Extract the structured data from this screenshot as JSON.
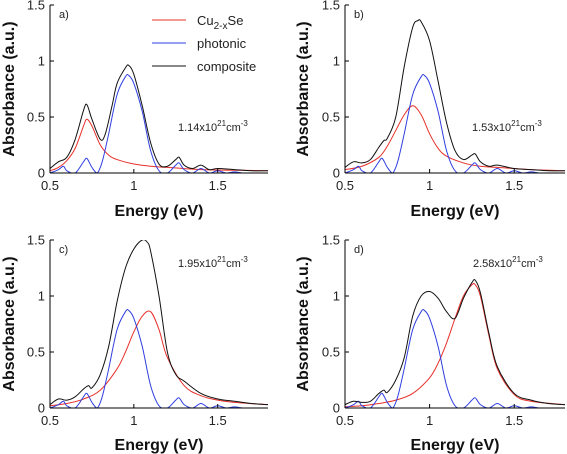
{
  "chart_data": [
    {
      "type": "line",
      "panel_label": "a)",
      "annotation": {
        "base": "1.14x10",
        "exp": "21",
        "unit": "cm",
        "unit_exp": "-3"
      },
      "xlabel": "Energy (eV)",
      "ylabel": "Absorbance (a.u.)",
      "xlim": [
        0.5,
        1.8
      ],
      "ylim": [
        0,
        1.5
      ],
      "xticks": [
        0.5,
        1,
        1.5
      ],
      "xtick_labels": [
        "0.5",
        "1",
        "1.5"
      ],
      "yticks": [
        0,
        0.5,
        1,
        1.5
      ],
      "ytick_labels": [
        "0",
        "0.5",
        "1",
        "1.5"
      ],
      "legend": {
        "placement": "top-right",
        "entries": [
          {
            "series": "cu",
            "text": "Cu",
            "sub": "2-x",
            "suffix": "Se"
          },
          {
            "series": "photonic",
            "text": "photonic"
          },
          {
            "series": "composite",
            "text": "composite"
          }
        ]
      },
      "series": [
        {
          "name": "Cu2-xSe",
          "key": "cu",
          "color": "#e8302a",
          "x": [
            0.5,
            0.55,
            0.6,
            0.65,
            0.7,
            0.72,
            0.75,
            0.8,
            0.85,
            0.9,
            1.0,
            1.1,
            1.2,
            1.4,
            1.6,
            1.8
          ],
          "y": [
            0.02,
            0.05,
            0.11,
            0.22,
            0.42,
            0.48,
            0.42,
            0.25,
            0.16,
            0.12,
            0.08,
            0.06,
            0.05,
            0.03,
            0.025,
            0.02
          ]
        },
        {
          "name": "photonic",
          "key": "photonic",
          "color": "#2f3fe0",
          "x": [
            0.5,
            0.55,
            0.58,
            0.6,
            0.65,
            0.7,
            0.72,
            0.75,
            0.78,
            0.8,
            0.82,
            0.85,
            0.9,
            0.95,
            0.97,
            1.0,
            1.05,
            1.1,
            1.15,
            1.2,
            1.25,
            1.27,
            1.3,
            1.35,
            1.4,
            1.45,
            1.5,
            1.55,
            1.6,
            1.65,
            1.7,
            1.8
          ],
          "y": [
            0.0,
            0.03,
            0.06,
            0.02,
            0.0,
            0.1,
            0.13,
            0.05,
            0.0,
            0.05,
            0.15,
            0.35,
            0.7,
            0.86,
            0.87,
            0.8,
            0.55,
            0.2,
            0.02,
            0.0,
            0.07,
            0.09,
            0.03,
            0.0,
            0.04,
            0.0,
            0.02,
            0.0,
            0.01,
            0.0,
            0.0,
            0.0
          ]
        },
        {
          "name": "composite",
          "key": "composite",
          "color": "#111111",
          "x": [
            0.5,
            0.55,
            0.6,
            0.65,
            0.7,
            0.72,
            0.75,
            0.8,
            0.83,
            0.87,
            0.9,
            0.95,
            0.97,
            1.0,
            1.05,
            1.1,
            1.15,
            1.2,
            1.25,
            1.27,
            1.3,
            1.35,
            1.4,
            1.45,
            1.5,
            1.6,
            1.7,
            1.8
          ],
          "y": [
            0.04,
            0.1,
            0.14,
            0.3,
            0.56,
            0.61,
            0.48,
            0.3,
            0.35,
            0.6,
            0.8,
            0.94,
            0.96,
            0.88,
            0.6,
            0.27,
            0.08,
            0.06,
            0.12,
            0.14,
            0.07,
            0.04,
            0.07,
            0.03,
            0.04,
            0.03,
            0.02,
            0.02
          ]
        }
      ]
    },
    {
      "type": "line",
      "panel_label": "b)",
      "annotation": {
        "base": "1.53x10",
        "exp": "21",
        "unit": "cm",
        "unit_exp": "-3"
      },
      "xlabel": "Energy (eV)",
      "ylabel": "Absorbance (a.u.)",
      "xlim": [
        0.5,
        1.8
      ],
      "ylim": [
        0,
        1.5
      ],
      "xticks": [
        0.5,
        1,
        1.5
      ],
      "xtick_labels": [
        "0.5",
        "1",
        "1.5"
      ],
      "yticks": [
        0,
        0.5,
        1,
        1.5
      ],
      "ytick_labels": [
        "0",
        "0.5",
        "1",
        "1.5"
      ],
      "series": [
        {
          "name": "Cu2-xSe",
          "key": "cu",
          "color": "#e8302a",
          "x": [
            0.5,
            0.6,
            0.7,
            0.75,
            0.8,
            0.85,
            0.9,
            0.95,
            1.0,
            1.05,
            1.1,
            1.2,
            1.3,
            1.4,
            1.6,
            1.8
          ],
          "y": [
            0.03,
            0.06,
            0.14,
            0.24,
            0.38,
            0.52,
            0.6,
            0.52,
            0.35,
            0.22,
            0.15,
            0.09,
            0.06,
            0.05,
            0.03,
            0.02
          ]
        },
        {
          "name": "photonic",
          "key": "photonic",
          "color": "#2f3fe0",
          "x": [
            0.5,
            0.55,
            0.58,
            0.6,
            0.65,
            0.7,
            0.72,
            0.75,
            0.78,
            0.8,
            0.82,
            0.85,
            0.9,
            0.95,
            0.97,
            1.0,
            1.05,
            1.1,
            1.15,
            1.2,
            1.25,
            1.27,
            1.3,
            1.35,
            1.4,
            1.45,
            1.5,
            1.55,
            1.6,
            1.65,
            1.7,
            1.8
          ],
          "y": [
            0.0,
            0.03,
            0.06,
            0.02,
            0.0,
            0.1,
            0.13,
            0.05,
            0.0,
            0.05,
            0.15,
            0.35,
            0.7,
            0.86,
            0.87,
            0.8,
            0.55,
            0.2,
            0.02,
            0.0,
            0.07,
            0.09,
            0.03,
            0.0,
            0.04,
            0.0,
            0.02,
            0.0,
            0.01,
            0.0,
            0.0,
            0.0
          ]
        },
        {
          "name": "composite",
          "key": "composite",
          "color": "#111111",
          "x": [
            0.5,
            0.55,
            0.6,
            0.65,
            0.7,
            0.73,
            0.75,
            0.8,
            0.85,
            0.9,
            0.93,
            0.95,
            1.0,
            1.05,
            1.1,
            1.15,
            1.2,
            1.25,
            1.27,
            1.3,
            1.35,
            1.4,
            1.5,
            1.6,
            1.7,
            1.8
          ],
          "y": [
            0.05,
            0.1,
            0.09,
            0.12,
            0.23,
            0.29,
            0.31,
            0.5,
            0.95,
            1.3,
            1.36,
            1.35,
            1.18,
            0.82,
            0.45,
            0.2,
            0.12,
            0.16,
            0.17,
            0.1,
            0.06,
            0.07,
            0.04,
            0.03,
            0.02,
            0.02
          ]
        }
      ]
    },
    {
      "type": "line",
      "panel_label": "c)",
      "annotation": {
        "base": "1.95x10",
        "exp": "21",
        "unit": "cm",
        "unit_exp": "-3"
      },
      "xlabel": "Energy (eV)",
      "ylabel": "Absorbance (a.u.)",
      "xlim": [
        0.5,
        1.8
      ],
      "ylim": [
        0,
        1.5
      ],
      "xticks": [
        0.5,
        1,
        1.5
      ],
      "xtick_labels": [
        "0.5",
        "1",
        "1.5"
      ],
      "yticks": [
        0,
        0.5,
        1,
        1.5
      ],
      "ytick_labels": [
        "0",
        "0.5",
        "1",
        "1.5"
      ],
      "series": [
        {
          "name": "Cu2-xSe",
          "key": "cu",
          "color": "#e8302a",
          "x": [
            0.5,
            0.6,
            0.7,
            0.8,
            0.9,
            0.95,
            1.0,
            1.05,
            1.1,
            1.15,
            1.2,
            1.3,
            1.4,
            1.5,
            1.6,
            1.8
          ],
          "y": [
            0.02,
            0.04,
            0.08,
            0.16,
            0.35,
            0.5,
            0.68,
            0.82,
            0.86,
            0.7,
            0.45,
            0.2,
            0.11,
            0.07,
            0.05,
            0.03
          ]
        },
        {
          "name": "photonic",
          "key": "photonic",
          "color": "#2f3fe0",
          "x": [
            0.5,
            0.55,
            0.58,
            0.6,
            0.65,
            0.7,
            0.72,
            0.75,
            0.78,
            0.8,
            0.82,
            0.85,
            0.9,
            0.95,
            0.97,
            1.0,
            1.05,
            1.1,
            1.15,
            1.2,
            1.25,
            1.27,
            1.3,
            1.35,
            1.4,
            1.45,
            1.5,
            1.55,
            1.6,
            1.65,
            1.7,
            1.8
          ],
          "y": [
            0.0,
            0.03,
            0.06,
            0.02,
            0.0,
            0.1,
            0.13,
            0.05,
            0.0,
            0.05,
            0.15,
            0.35,
            0.7,
            0.86,
            0.87,
            0.8,
            0.55,
            0.2,
            0.02,
            0.0,
            0.07,
            0.09,
            0.03,
            0.0,
            0.04,
            0.0,
            0.02,
            0.0,
            0.01,
            0.0,
            0.0,
            0.0
          ]
        },
        {
          "name": "composite",
          "key": "composite",
          "color": "#111111",
          "x": [
            0.5,
            0.55,
            0.6,
            0.65,
            0.7,
            0.73,
            0.75,
            0.8,
            0.85,
            0.9,
            0.95,
            1.0,
            1.05,
            1.08,
            1.1,
            1.15,
            1.2,
            1.25,
            1.3,
            1.4,
            1.5,
            1.6,
            1.7,
            1.8
          ],
          "y": [
            0.03,
            0.08,
            0.07,
            0.1,
            0.17,
            0.2,
            0.18,
            0.3,
            0.55,
            0.95,
            1.25,
            1.42,
            1.5,
            1.48,
            1.4,
            1.0,
            0.5,
            0.3,
            0.24,
            0.13,
            0.08,
            0.06,
            0.04,
            0.03
          ]
        }
      ]
    },
    {
      "type": "line",
      "panel_label": "d)",
      "annotation": {
        "base": "2.58x10",
        "exp": "21",
        "unit": "cm",
        "unit_exp": "-3"
      },
      "xlabel": "Energy (eV)",
      "ylabel": "Absorbance (a.u.)",
      "xlim": [
        0.5,
        1.8
      ],
      "ylim": [
        0,
        1.5
      ],
      "xticks": [
        0.5,
        1,
        1.5
      ],
      "xtick_labels": [
        "0.5",
        "1",
        "1.5"
      ],
      "yticks": [
        0,
        0.5,
        1,
        1.5
      ],
      "ytick_labels": [
        "0",
        "0.5",
        "1",
        "1.5"
      ],
      "series": [
        {
          "name": "Cu2-xSe",
          "key": "cu",
          "color": "#e8302a",
          "x": [
            0.5,
            0.6,
            0.7,
            0.8,
            0.9,
            1.0,
            1.05,
            1.1,
            1.15,
            1.2,
            1.25,
            1.27,
            1.3,
            1.35,
            1.4,
            1.5,
            1.6,
            1.8
          ],
          "y": [
            0.01,
            0.02,
            0.04,
            0.07,
            0.13,
            0.27,
            0.4,
            0.58,
            0.8,
            1.0,
            1.1,
            1.1,
            1.0,
            0.65,
            0.35,
            0.12,
            0.06,
            0.03
          ]
        },
        {
          "name": "photonic",
          "key": "photonic",
          "color": "#2f3fe0",
          "x": [
            0.5,
            0.55,
            0.58,
            0.6,
            0.65,
            0.7,
            0.72,
            0.75,
            0.78,
            0.8,
            0.82,
            0.85,
            0.9,
            0.95,
            0.97,
            1.0,
            1.05,
            1.1,
            1.15,
            1.2,
            1.25,
            1.27,
            1.3,
            1.35,
            1.4,
            1.45,
            1.5,
            1.55,
            1.6,
            1.65,
            1.7,
            1.8
          ],
          "y": [
            0.0,
            0.03,
            0.06,
            0.02,
            0.0,
            0.1,
            0.13,
            0.05,
            0.0,
            0.05,
            0.15,
            0.35,
            0.7,
            0.86,
            0.87,
            0.8,
            0.55,
            0.2,
            0.02,
            0.0,
            0.07,
            0.09,
            0.03,
            0.0,
            0.04,
            0.0,
            0.02,
            0.0,
            0.01,
            0.0,
            0.0,
            0.0
          ]
        },
        {
          "name": "composite",
          "key": "composite",
          "color": "#111111",
          "x": [
            0.5,
            0.55,
            0.6,
            0.65,
            0.7,
            0.73,
            0.75,
            0.8,
            0.85,
            0.9,
            0.95,
            1.0,
            1.05,
            1.1,
            1.15,
            1.2,
            1.25,
            1.27,
            1.3,
            1.35,
            1.4,
            1.5,
            1.6,
            1.7,
            1.8
          ],
          "y": [
            0.03,
            0.06,
            0.05,
            0.06,
            0.13,
            0.16,
            0.14,
            0.25,
            0.45,
            0.82,
            1.0,
            1.04,
            0.98,
            0.86,
            0.8,
            0.98,
            1.12,
            1.14,
            1.03,
            0.67,
            0.37,
            0.13,
            0.07,
            0.04,
            0.03
          ]
        }
      ]
    }
  ]
}
